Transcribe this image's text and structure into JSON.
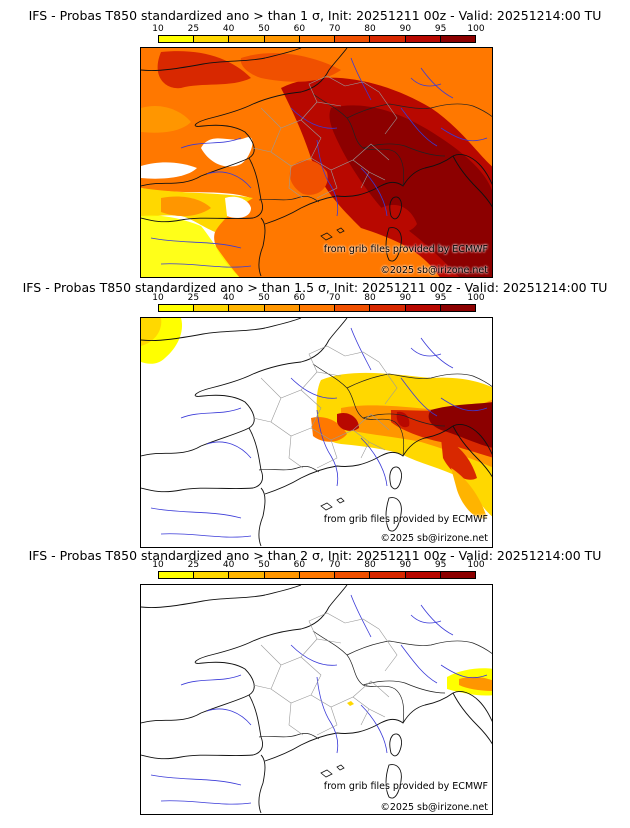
{
  "colorscale": {
    "ticks": [
      "10",
      "25",
      "40",
      "50",
      "60",
      "70",
      "80",
      "90",
      "95",
      "100"
    ],
    "colors": [
      "#ffff00",
      "#ffd800",
      "#ffb400",
      "#ff9600",
      "#ff7800",
      "#f05000",
      "#d82800",
      "#b80800",
      "#8c0000"
    ]
  },
  "panels": [
    {
      "title": "IFS - Probas T850  standardized ano > than 1 σ, Init: 20251211 00z - Valid: 20251214:00 TU",
      "credit_source": "from grib files provided by ECMWF",
      "credit_copyright": "©2025 sb@irizone.net"
    },
    {
      "title": "IFS - Probas T850  standardized ano > than 1.5 σ, Init: 20251211 00z - Valid: 20251214:00 TU",
      "credit_source": "from grib files provided by ECMWF",
      "credit_copyright": "©2025 sb@irizone.net"
    },
    {
      "title": "IFS - Probas T850  standardized ano > than 2 σ, Init: 20251211 00z - Valid: 20251214:00 TU",
      "credit_source": "from grib files provided by ECMWF",
      "credit_copyright": "©2025 sb@irizone.net"
    }
  ]
}
